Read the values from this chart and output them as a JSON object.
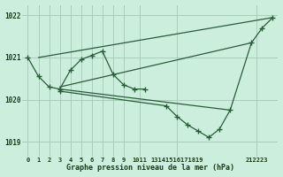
{
  "background_color": "#cceedd",
  "grid_color": "#aaccbb",
  "line_color": "#2a5c3a",
  "title": "Graphe pression niveau de la mer (hPa)",
  "xlim": [
    -0.5,
    23.5
  ],
  "ylim": [
    1018.65,
    1022.25
  ],
  "yticks": [
    1019,
    1020,
    1021,
    1022
  ],
  "lines": [
    {
      "x": [
        1,
        23
      ],
      "y": [
        1021.0,
        1021.95
      ],
      "marker": false
    },
    {
      "x": [
        3,
        21
      ],
      "y": [
        1020.3,
        1021.35
      ],
      "marker": false
    },
    {
      "x": [
        3,
        19
      ],
      "y": [
        1020.25,
        1019.75
      ],
      "marker": false
    },
    {
      "x": [
        3,
        13,
        14,
        15,
        16,
        17,
        18,
        19,
        21,
        22,
        23
      ],
      "y": [
        1020.2,
        1019.85,
        1019.6,
        1019.4,
        1019.25,
        1019.1,
        1019.3,
        1019.75,
        1021.35,
        1021.7,
        1021.95
      ],
      "marker": true
    },
    {
      "x": [
        0,
        1,
        2,
        3,
        4,
        5,
        6,
        7,
        8,
        9,
        10,
        11
      ],
      "y": [
        1021.0,
        1020.55,
        1020.3,
        1020.25,
        1020.7,
        1020.95,
        1021.05,
        1021.15,
        1020.6,
        1020.35,
        1020.25,
        1020.25
      ],
      "marker": true
    }
  ],
  "xtick_positions": [
    0,
    1,
    2,
    3,
    4,
    5,
    6,
    7,
    8,
    9,
    10.5,
    14,
    21.5
  ],
  "xtick_labels": [
    "0",
    "1",
    "2",
    "3",
    "4",
    "5",
    "6",
    "7",
    "8",
    "9",
    "1011",
    "13141516171819",
    "212223"
  ]
}
